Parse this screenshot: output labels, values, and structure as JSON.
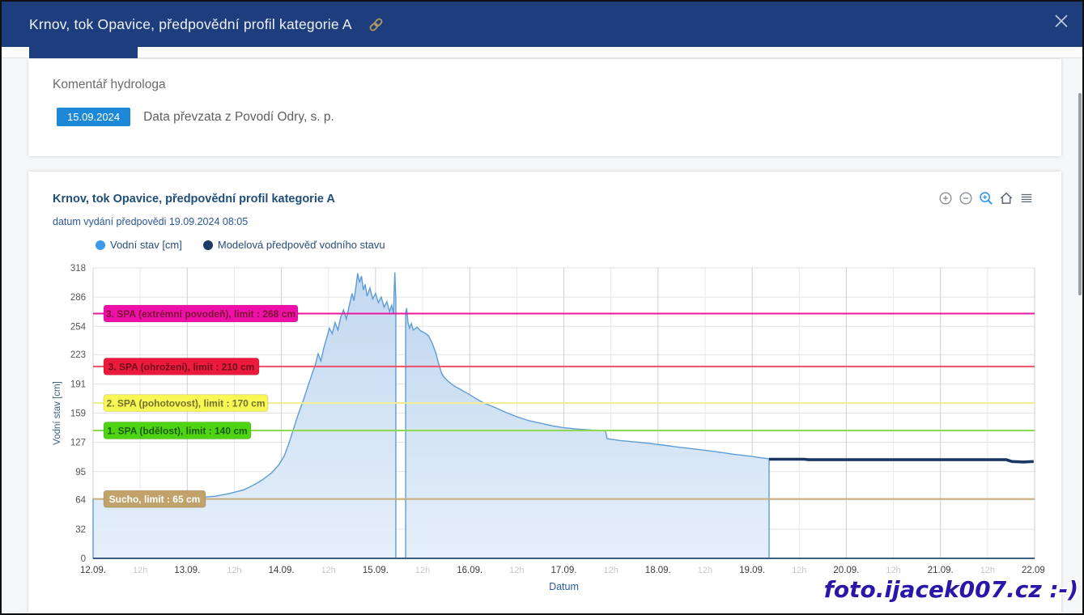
{
  "window": {
    "title": "Krnov, tok Opavice, předpovědní profil kategorie A"
  },
  "comment_card": {
    "heading": "Komentář hydrologa",
    "date_badge": "15.09.2024",
    "text": "Data převzata z Povodí Odry, s. p.",
    "badge_color": "#1e88d8"
  },
  "chart_card": {
    "title": "Krnov, tok Opavice, předpovědní profil kategorie A",
    "subtitle": "datum vydání předpovědi 19.09.2024 08:05",
    "legend": [
      {
        "label": "Vodní stav [cm]",
        "color": "#3d9ae8"
      },
      {
        "label": "Modelová předpověď vodního stavu",
        "color": "#1b3a66"
      }
    ],
    "toolbar_icons": [
      "zoom-in",
      "zoom-out",
      "box-zoom",
      "home",
      "menu"
    ]
  },
  "chart_data": {
    "type": "area",
    "title": "Krnov, tok Opavice, předpovědní profil kategorie A",
    "xlabel": "Datum",
    "ylabel": "Vodní stav [cm]",
    "ylim": [
      0,
      318
    ],
    "xmax_days": 10,
    "grid": true,
    "yticks": [
      0,
      32,
      64,
      95,
      127,
      159,
      191,
      223,
      254,
      286,
      318
    ],
    "xticks": [
      {
        "d": 0,
        "l": "12.09.",
        "t": "day"
      },
      {
        "d": 0.5,
        "l": "12h",
        "t": "half"
      },
      {
        "d": 1,
        "l": "13.09.",
        "t": "day"
      },
      {
        "d": 1.5,
        "l": "12h",
        "t": "half"
      },
      {
        "d": 2,
        "l": "14.09.",
        "t": "day"
      },
      {
        "d": 2.5,
        "l": "12h",
        "t": "half"
      },
      {
        "d": 3,
        "l": "15.09.",
        "t": "day"
      },
      {
        "d": 3.5,
        "l": "12h",
        "t": "half"
      },
      {
        "d": 4,
        "l": "16.09.",
        "t": "day"
      },
      {
        "d": 4.5,
        "l": "12h",
        "t": "half"
      },
      {
        "d": 5,
        "l": "17.09.",
        "t": "day"
      },
      {
        "d": 5.5,
        "l": "12h",
        "t": "half"
      },
      {
        "d": 6,
        "l": "18.09.",
        "t": "day"
      },
      {
        "d": 6.5,
        "l": "12h",
        "t": "half"
      },
      {
        "d": 7,
        "l": "19.09.",
        "t": "day"
      },
      {
        "d": 7.5,
        "l": "12h",
        "t": "half"
      },
      {
        "d": 8,
        "l": "20.09.",
        "t": "day"
      },
      {
        "d": 8.5,
        "l": "12h",
        "t": "half"
      },
      {
        "d": 9,
        "l": "21.09.",
        "t": "day"
      },
      {
        "d": 9.5,
        "l": "12h",
        "t": "half"
      },
      {
        "d": 10,
        "l": "22.09.",
        "t": "day"
      }
    ],
    "thresholds": [
      {
        "label": "3. SPA (extrémní povodeň), limit : 268 cm",
        "value": 268,
        "line_color": "#e8189e",
        "badge_color": "#ee10a8",
        "text_color": "#7c1230",
        "badge_width": 240
      },
      {
        "label": "3. SPA (ohrožení), limit : 210 cm",
        "value": 210,
        "line_color": "#ef5066",
        "badge_color": "#ec1a3c",
        "text_color": "#6e0f1a",
        "badge_width": 192
      },
      {
        "label": "2. SPA (pohotovost), limit : 170 cm",
        "value": 170,
        "line_color": "#f0ee90",
        "badge_color": "#f9f754",
        "text_color": "#72712d",
        "badge_width": 203
      },
      {
        "label": "1. SPA (bdělost), limit : 140 cm",
        "value": 140,
        "line_color": "#8fd94f",
        "badge_color": "#4fd315",
        "text_color": "#1c5c0d",
        "badge_width": 182
      },
      {
        "label": "Sucho, limit : 65 cm",
        "value": 65,
        "line_color": "#c9ae7c",
        "badge_color": "#c0a26a",
        "text_color": "#ffffff",
        "badge_width": 126
      }
    ],
    "series": [
      {
        "name": "Vodní stav [cm]",
        "type": "area",
        "stroke": "#5d9cd6",
        "fill_top": "#c2d8f0",
        "fill_bottom": "#e6f0fa",
        "segments": [
          [
            [
              0,
              65
            ],
            [
              0.2,
              65
            ],
            [
              0.4,
              64
            ],
            [
              0.6,
              65
            ],
            [
              0.8,
              65
            ],
            [
              1.0,
              66
            ],
            [
              1.15,
              67
            ],
            [
              1.3,
              68
            ],
            [
              1.45,
              71
            ],
            [
              1.6,
              75
            ],
            [
              1.7,
              80
            ],
            [
              1.8,
              86
            ],
            [
              1.9,
              94
            ],
            [
              1.97,
              102
            ],
            [
              2.03,
              112
            ],
            [
              2.08,
              126
            ],
            [
              2.13,
              142
            ],
            [
              2.18,
              158
            ],
            [
              2.23,
              172
            ],
            [
              2.28,
              188
            ],
            [
              2.32,
              200
            ],
            [
              2.36,
              212
            ],
            [
              2.39,
              224
            ],
            [
              2.42,
              216
            ],
            [
              2.45,
              230
            ],
            [
              2.48,
              241
            ],
            [
              2.51,
              252
            ],
            [
              2.54,
              246
            ],
            [
              2.57,
              258
            ],
            [
              2.6,
              250
            ],
            [
              2.63,
              264
            ],
            [
              2.66,
              272
            ],
            [
              2.69,
              262
            ],
            [
              2.72,
              276
            ],
            [
              2.75,
              290
            ],
            [
              2.77,
              282
            ],
            [
              2.79,
              296
            ],
            [
              2.81,
              312
            ],
            [
              2.83,
              302
            ],
            [
              2.85,
              309
            ],
            [
              2.87,
              294
            ],
            [
              2.89,
              300
            ],
            [
              2.91,
              287
            ],
            [
              2.94,
              296
            ],
            [
              2.97,
              284
            ],
            [
              3.0,
              290
            ],
            [
              3.03,
              280
            ],
            [
              3.06,
              286
            ],
            [
              3.09,
              275
            ],
            [
              3.12,
              281
            ],
            [
              3.15,
              270
            ],
            [
              3.17,
              277
            ],
            [
              3.19,
              268
            ],
            [
              3.205,
              313
            ],
            [
              3.215,
              285
            ]
          ],
          [
            [
              3.32,
              268
            ],
            [
              3.33,
              274
            ],
            [
              3.345,
              258
            ],
            [
              3.36,
              252
            ],
            [
              3.38,
              257
            ],
            [
              3.4,
              250
            ],
            [
              3.44,
              253
            ],
            [
              3.48,
              249
            ],
            [
              3.52,
              247
            ],
            [
              3.56,
              244
            ],
            [
              3.6,
              236
            ],
            [
              3.64,
              225
            ],
            [
              3.67,
              213
            ],
            [
              3.7,
              203
            ],
            [
              3.73,
              198
            ],
            [
              3.78,
              193
            ],
            [
              3.83,
              189
            ],
            [
              3.9,
              185
            ],
            [
              3.97,
              181
            ],
            [
              4.05,
              176
            ],
            [
              4.15,
              170
            ],
            [
              4.25,
              166
            ],
            [
              4.38,
              160
            ],
            [
              4.5,
              155
            ],
            [
              4.62,
              151
            ],
            [
              4.75,
              148
            ],
            [
              4.88,
              145
            ],
            [
              5.0,
              143
            ],
            [
              5.15,
              141.5
            ],
            [
              5.3,
              140.5
            ],
            [
              5.44,
              140
            ],
            [
              5.46,
              131
            ],
            [
              5.6,
              129
            ],
            [
              5.75,
              127.5
            ],
            [
              5.9,
              126
            ],
            [
              6.05,
              124
            ],
            [
              6.2,
              122
            ],
            [
              6.4,
              119.5
            ],
            [
              6.6,
              117
            ],
            [
              6.8,
              114
            ],
            [
              7.0,
              111.5
            ],
            [
              7.1,
              110
            ],
            [
              7.18,
              109
            ]
          ]
        ]
      },
      {
        "name": "Modelová předpověď vodního stavu",
        "type": "line",
        "stroke": "#1a3764",
        "points": [
          [
            7.18,
            108.5
          ],
          [
            7.55,
            108.5
          ],
          [
            7.6,
            108
          ],
          [
            8.4,
            108
          ],
          [
            9.2,
            108
          ],
          [
            9.7,
            108
          ],
          [
            9.76,
            106
          ],
          [
            9.88,
            105.5
          ],
          [
            9.99,
            106
          ]
        ]
      }
    ],
    "colors": {
      "grid_day": "#cfcfcf",
      "grid_half": "#e9e9e9",
      "grid_h": "#e2e2e2",
      "axis_line": "#3f5d7e",
      "tick_day": "#3c3c3c",
      "tick_half": "#c8c8c8",
      "tick_y": "#555555",
      "xlabel_color": "#2b5aa0",
      "ylabel_color": "#3d6083"
    }
  },
  "watermark": "foto.ijacek007.cz :-)"
}
